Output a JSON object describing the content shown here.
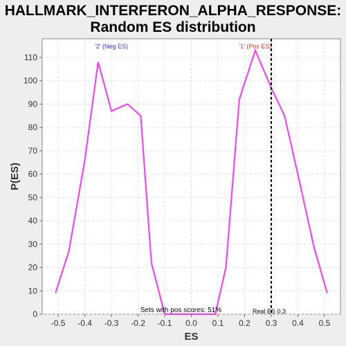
{
  "chart_data": {
    "type": "line",
    "title": [
      "HALLMARK_INTERFERON_ALPHA_RESPONSE:",
      "Random ES distribution"
    ],
    "xlabel": "ES",
    "ylabel": "P(ES)",
    "xlim": [
      -0.56,
      0.56
    ],
    "ylim": [
      0,
      118
    ],
    "xticks": [
      "-0.5",
      "-0.4",
      "-0.3",
      "-0.2",
      "-0.1",
      "0.0",
      "0.1",
      "0.2",
      "0.3",
      "0.4",
      "0.5"
    ],
    "yticks": [
      "0",
      "10",
      "20",
      "30",
      "40",
      "50",
      "60",
      "70",
      "80",
      "90",
      "100",
      "110"
    ],
    "grid": true,
    "line_color": "#ff33ff",
    "series": [
      {
        "x": [
          -0.51,
          -0.46,
          -0.4,
          -0.35,
          -0.3,
          -0.24,
          -0.19,
          -0.15,
          -0.1,
          -0.05,
          0.0,
          0.05,
          0.09,
          0.13,
          0.18,
          0.24,
          0.3,
          0.35,
          0.4,
          0.46,
          0.51
        ],
        "y": [
          9,
          27,
          66,
          108,
          87,
          90,
          85,
          22,
          0,
          0,
          0,
          0,
          0,
          20,
          92,
          113,
          97,
          85,
          60,
          29,
          9
        ]
      }
    ],
    "annotations": {
      "neg_label": "'2' (Neg ES)",
      "neg_label_x": -0.3,
      "neg_color": "#3333ff",
      "pos_label": "'1' (Pos ES)",
      "pos_label_x": 0.24,
      "pos_color": "#ff3333",
      "real_es_label": "Real ES 0.3",
      "real_es_value": 0.3,
      "pos_scores_label": "Sets with pos scores: 51%",
      "pos_scores_x": 0.0
    }
  }
}
